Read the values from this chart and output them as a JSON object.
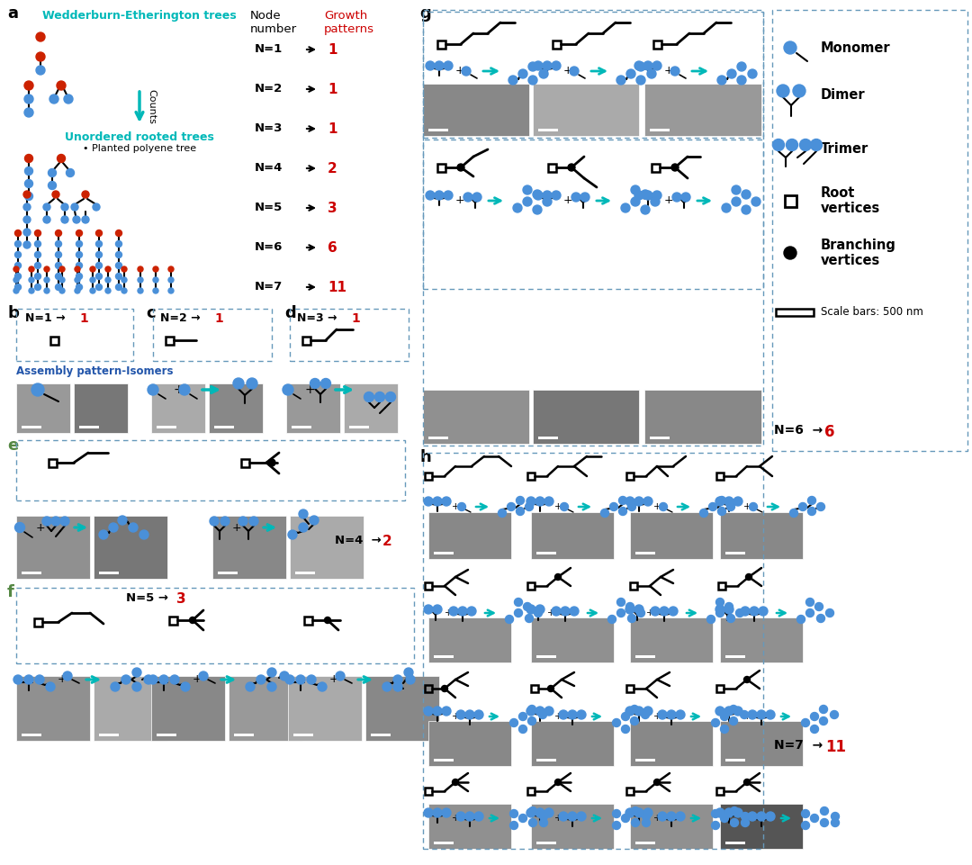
{
  "bg_color": "#ffffff",
  "cyan": "#00B8B8",
  "red": "#CC0000",
  "blue": "#4A90D9",
  "dark_red": "#CC2200",
  "black": "#000000",
  "gray1": "#888888",
  "gray2": "#aaaaaa",
  "gray3": "#999999",
  "panel_labels": [
    "a",
    "b",
    "c",
    "d",
    "e",
    "f",
    "g",
    "h"
  ],
  "we_tree_title": "Wedderburn-Etherington trees",
  "unordered_title": "Unordered rooted trees",
  "planted_title": "Planted polyene tree",
  "node_label": "Node\nnumber",
  "growth_label": "Growth\npatterns",
  "n_values": [
    "N=1",
    "N=2",
    "N=3",
    "N=4",
    "N=5",
    "N=6",
    "N=7"
  ],
  "g_values": [
    "1",
    "1",
    "1",
    "2",
    "3",
    "6",
    "11"
  ],
  "counts_label": "Counts",
  "assembly_label": "Assembly pattern-Isomers",
  "monomer_label": "Monomer",
  "dimer_label": "Dimer",
  "trimer_label": "Trimer",
  "root_label": "Root\nvertices",
  "branching_label": "Branching\nvertices",
  "scale_bar_label": "Scale bars: 500 nm",
  "n4_val": "2",
  "n5_val": "3",
  "n6_val": "6",
  "n7_val": "11"
}
